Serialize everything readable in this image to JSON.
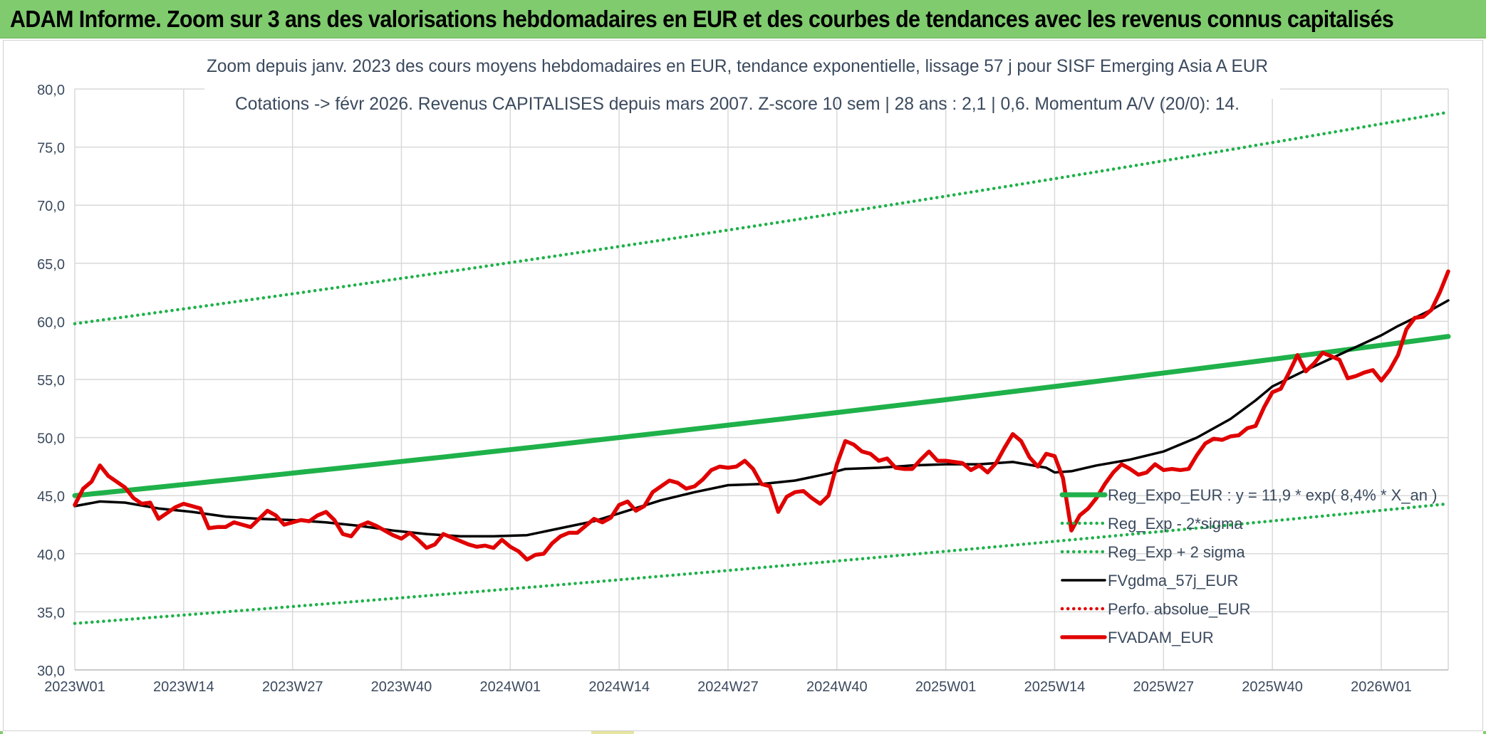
{
  "banner": {
    "title": "ADAM Informe. Zoom sur 3 ans des valorisations hebdomadaires en EUR et des courbes de tendances avec les revenus connus capitalisés"
  },
  "chart_data": {
    "type": "line",
    "title": "Zoom depuis janv. 2023 des cours moyens hebdomadaires en EUR, tendance exponentielle, lissage 57 j pour SISF Emerging Asia A EUR",
    "subtitle": "Cotations -> févr 2026. Revenus CAPITALISES depuis mars 2007. Z-score 10 sem | 28 ans : 2,1 | 0,6. Momentum A/V (20/0): 14.",
    "xlabel": "",
    "ylabel": "",
    "ylim": [
      30,
      80
    ],
    "y_ticks": [
      "30,0",
      "35,0",
      "40,0",
      "45,0",
      "50,0",
      "55,0",
      "60,0",
      "65,0",
      "70,0",
      "75,0",
      "80,0"
    ],
    "x_range_weeks": [
      0,
      164
    ],
    "x_ticks": [
      {
        "label": "2023W01",
        "week": 0
      },
      {
        "label": "2023W14",
        "week": 13
      },
      {
        "label": "2023W27",
        "week": 26
      },
      {
        "label": "2023W40",
        "week": 39
      },
      {
        "label": "2024W01",
        "week": 52
      },
      {
        "label": "2024W14",
        "week": 65
      },
      {
        "label": "2024W27",
        "week": 78
      },
      {
        "label": "2024W40",
        "week": 91
      },
      {
        "label": "2025W01",
        "week": 104
      },
      {
        "label": "2025W14",
        "week": 117
      },
      {
        "label": "2025W27",
        "week": 130
      },
      {
        "label": "2025W40",
        "week": 143
      },
      {
        "label": "2026W01",
        "week": 156
      }
    ],
    "grid": true,
    "legend_position": "bottom-right",
    "series": [
      {
        "name": "Reg_Expo_EUR : y = 11,9 * exp( 8,4% *  X_an )",
        "style": "thick-solid",
        "color": "#1fb14a",
        "week": [
          0,
          164
        ],
        "start": 45.0,
        "end": 58.7,
        "shape": "exponential"
      },
      {
        "name": "Reg_Exp - 2*sigma",
        "style": "dotted",
        "color": "#1fb14a",
        "week": [
          0,
          164
        ],
        "start": 34.0,
        "end": 44.3,
        "shape": "exponential"
      },
      {
        "name": "Reg_Exp + 2 sigma",
        "style": "dotted",
        "color": "#1fb14a",
        "week": [
          0,
          164
        ],
        "start": 59.8,
        "end": 78.0,
        "shape": "exponential"
      },
      {
        "name": "FVgdma_57j_EUR",
        "style": "solid",
        "color": "#000000",
        "points": [
          [
            0,
            44.1
          ],
          [
            3,
            44.5
          ],
          [
            6,
            44.4
          ],
          [
            10,
            43.9
          ],
          [
            14,
            43.6
          ],
          [
            18,
            43.2
          ],
          [
            22,
            43.0
          ],
          [
            26,
            42.9
          ],
          [
            30,
            42.7
          ],
          [
            34,
            42.4
          ],
          [
            38,
            42.0
          ],
          [
            42,
            41.7
          ],
          [
            46,
            41.5
          ],
          [
            50,
            41.5
          ],
          [
            54,
            41.6
          ],
          [
            58,
            42.2
          ],
          [
            62,
            42.8
          ],
          [
            66,
            43.7
          ],
          [
            70,
            44.6
          ],
          [
            74,
            45.3
          ],
          [
            78,
            45.9
          ],
          [
            82,
            46.0
          ],
          [
            86,
            46.3
          ],
          [
            90,
            46.9
          ],
          [
            92,
            47.3
          ],
          [
            96,
            47.4
          ],
          [
            100,
            47.6
          ],
          [
            104,
            47.7
          ],
          [
            108,
            47.7
          ],
          [
            112,
            47.9
          ],
          [
            116,
            47.4
          ],
          [
            117,
            47.0
          ],
          [
            119,
            47.1
          ],
          [
            122,
            47.6
          ],
          [
            126,
            48.1
          ],
          [
            130,
            48.8
          ],
          [
            134,
            50.0
          ],
          [
            138,
            51.6
          ],
          [
            141,
            53.2
          ],
          [
            143,
            54.4
          ],
          [
            147,
            55.8
          ],
          [
            150,
            56.8
          ],
          [
            153,
            57.8
          ],
          [
            156,
            58.8
          ],
          [
            158,
            59.6
          ],
          [
            160,
            60.3
          ],
          [
            162,
            61.0
          ],
          [
            164,
            61.8
          ]
        ]
      },
      {
        "name": "Perfo. absolue_EUR",
        "style": "dotted",
        "color": "#e00000",
        "points": []
      },
      {
        "name": "FVADAM_EUR",
        "style": "thick-solid",
        "color": "#e00000",
        "points": [
          [
            0,
            44.2
          ],
          [
            1,
            45.6
          ],
          [
            2,
            46.2
          ],
          [
            3,
            47.6
          ],
          [
            4,
            46.7
          ],
          [
            5,
            46.2
          ],
          [
            6,
            45.7
          ],
          [
            7,
            44.8
          ],
          [
            8,
            44.3
          ],
          [
            9,
            44.4
          ],
          [
            10,
            43.0
          ],
          [
            11,
            43.5
          ],
          [
            12,
            44.0
          ],
          [
            13,
            44.3
          ],
          [
            14,
            44.1
          ],
          [
            15,
            43.9
          ],
          [
            16,
            42.2
          ],
          [
            17,
            42.3
          ],
          [
            18,
            42.3
          ],
          [
            19,
            42.7
          ],
          [
            20,
            42.5
          ],
          [
            21,
            42.3
          ],
          [
            22,
            43.0
          ],
          [
            23,
            43.7
          ],
          [
            24,
            43.3
          ],
          [
            25,
            42.5
          ],
          [
            26,
            42.7
          ],
          [
            27,
            42.9
          ],
          [
            28,
            42.8
          ],
          [
            29,
            43.3
          ],
          [
            30,
            43.6
          ],
          [
            31,
            42.9
          ],
          [
            32,
            41.7
          ],
          [
            33,
            41.5
          ],
          [
            34,
            42.4
          ],
          [
            35,
            42.7
          ],
          [
            36,
            42.4
          ],
          [
            37,
            42.0
          ],
          [
            38,
            41.6
          ],
          [
            39,
            41.3
          ],
          [
            40,
            41.8
          ],
          [
            41,
            41.2
          ],
          [
            42,
            40.5
          ],
          [
            43,
            40.8
          ],
          [
            44,
            41.7
          ],
          [
            45,
            41.4
          ],
          [
            46,
            41.1
          ],
          [
            47,
            40.8
          ],
          [
            48,
            40.6
          ],
          [
            49,
            40.7
          ],
          [
            50,
            40.5
          ],
          [
            51,
            41.2
          ],
          [
            52,
            40.6
          ],
          [
            53,
            40.2
          ],
          [
            54,
            39.5
          ],
          [
            55,
            39.9
          ],
          [
            56,
            40.0
          ],
          [
            57,
            40.9
          ],
          [
            58,
            41.5
          ],
          [
            59,
            41.8
          ],
          [
            60,
            41.8
          ],
          [
            61,
            42.4
          ],
          [
            62,
            43.0
          ],
          [
            63,
            42.7
          ],
          [
            64,
            43.1
          ],
          [
            65,
            44.2
          ],
          [
            66,
            44.5
          ],
          [
            67,
            43.7
          ],
          [
            68,
            44.1
          ],
          [
            69,
            45.3
          ],
          [
            70,
            45.8
          ],
          [
            71,
            46.3
          ],
          [
            72,
            46.1
          ],
          [
            73,
            45.6
          ],
          [
            74,
            45.8
          ],
          [
            75,
            46.4
          ],
          [
            76,
            47.2
          ],
          [
            77,
            47.5
          ],
          [
            78,
            47.4
          ],
          [
            79,
            47.5
          ],
          [
            80,
            48.0
          ],
          [
            81,
            47.3
          ],
          [
            82,
            46.0
          ],
          [
            83,
            45.8
          ],
          [
            84,
            43.6
          ],
          [
            85,
            44.9
          ],
          [
            86,
            45.3
          ],
          [
            87,
            45.4
          ],
          [
            88,
            44.8
          ],
          [
            89,
            44.3
          ],
          [
            90,
            45.0
          ],
          [
            91,
            47.7
          ],
          [
            92,
            49.7
          ],
          [
            93,
            49.4
          ],
          [
            94,
            48.8
          ],
          [
            95,
            48.6
          ],
          [
            96,
            48.0
          ],
          [
            97,
            48.2
          ],
          [
            98,
            47.4
          ],
          [
            99,
            47.3
          ],
          [
            100,
            47.3
          ],
          [
            101,
            48.1
          ],
          [
            102,
            48.8
          ],
          [
            103,
            48.0
          ],
          [
            104,
            48.0
          ],
          [
            105,
            47.9
          ],
          [
            106,
            47.8
          ],
          [
            107,
            47.2
          ],
          [
            108,
            47.6
          ],
          [
            109,
            47.0
          ],
          [
            110,
            47.8
          ],
          [
            111,
            49.1
          ],
          [
            112,
            50.3
          ],
          [
            113,
            49.7
          ],
          [
            114,
            48.3
          ],
          [
            115,
            47.5
          ],
          [
            116,
            48.6
          ],
          [
            117,
            48.4
          ],
          [
            118,
            46.5
          ],
          [
            119,
            42.0
          ],
          [
            120,
            43.3
          ],
          [
            121,
            43.9
          ],
          [
            122,
            44.8
          ],
          [
            123,
            46.0
          ],
          [
            124,
            47.0
          ],
          [
            125,
            47.7
          ],
          [
            126,
            47.3
          ],
          [
            127,
            46.8
          ],
          [
            128,
            47.0
          ],
          [
            129,
            47.7
          ],
          [
            130,
            47.2
          ],
          [
            131,
            47.3
          ],
          [
            132,
            47.2
          ],
          [
            133,
            47.3
          ],
          [
            134,
            48.5
          ],
          [
            135,
            49.5
          ],
          [
            136,
            49.9
          ],
          [
            137,
            49.8
          ],
          [
            138,
            50.1
          ],
          [
            139,
            50.2
          ],
          [
            140,
            50.8
          ],
          [
            141,
            51.0
          ],
          [
            142,
            52.6
          ],
          [
            143,
            53.9
          ],
          [
            144,
            54.2
          ],
          [
            145,
            55.6
          ],
          [
            146,
            57.1
          ],
          [
            147,
            55.7
          ],
          [
            148,
            56.4
          ],
          [
            149,
            57.3
          ],
          [
            150,
            57.0
          ],
          [
            151,
            56.7
          ],
          [
            152,
            55.1
          ],
          [
            153,
            55.3
          ],
          [
            154,
            55.6
          ],
          [
            155,
            55.8
          ],
          [
            156,
            54.9
          ],
          [
            157,
            55.8
          ],
          [
            158,
            57.1
          ],
          [
            159,
            59.3
          ],
          [
            160,
            60.3
          ],
          [
            161,
            60.4
          ],
          [
            162,
            61.0
          ],
          [
            163,
            62.5
          ],
          [
            164,
            64.3
          ]
        ]
      }
    ]
  }
}
